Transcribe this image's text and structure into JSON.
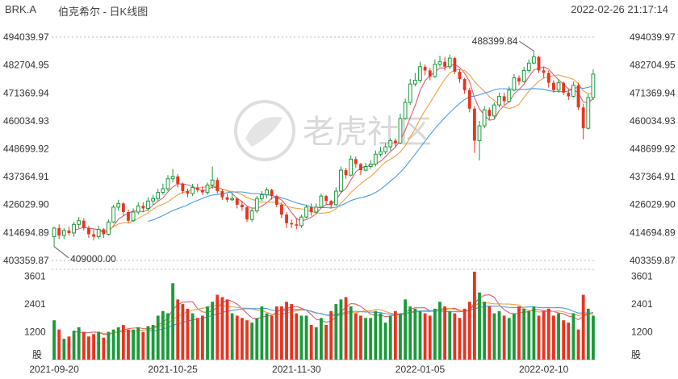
{
  "header": {
    "ticker": "BRK.A",
    "name": "伯克希尔 - 日K线图",
    "timestamp": "2022-02-26 21:17:14"
  },
  "watermark": "老虎社区",
  "colors": {
    "up": "#e8331f",
    "down": "#1a9a3a",
    "ma5": "#e05c6a",
    "ma10": "#f0a040",
    "ma20": "#4a9de0",
    "grid": "#bbbbbb"
  },
  "chart_data": {
    "type": "candlestick",
    "price_ticks": [
      "494039.97",
      "482704.95",
      "471369.94",
      "460034.93",
      "448699.92",
      "437364.91",
      "426029.90",
      "414694.89",
      "403359.87"
    ],
    "price_range": [
      403359.87,
      494039.97
    ],
    "volume_ticks": [
      "3601",
      "2401",
      "1200"
    ],
    "volume_unit": "股",
    "volume_range": [
      0,
      3901
    ],
    "x_labels": [
      {
        "text": "2021-09-20",
        "index": 0
      },
      {
        "text": "2021-10-25",
        "index": 24
      },
      {
        "text": "2021-11-30",
        "index": 49
      },
      {
        "text": "2022-01-05",
        "index": 74
      },
      {
        "text": "2022-02-10",
        "index": 99
      }
    ],
    "annotations": {
      "low_label": "409000.00",
      "low_value": 409000.0,
      "high_label": "488399.84",
      "high_value": 488399.84
    },
    "candles": [
      [
        413000,
        416500,
        417000,
        409000,
        1700
      ],
      [
        416500,
        413500,
        418000,
        412000,
        1300
      ],
      [
        413500,
        415500,
        416500,
        412000,
        900
      ],
      [
        415500,
        414500,
        417000,
        413500,
        1000
      ],
      [
        414500,
        418000,
        419000,
        413000,
        1250
      ],
      [
        418000,
        419500,
        421000,
        416500,
        1400
      ],
      [
        419500,
        416500,
        420500,
        415500,
        1200
      ],
      [
        416500,
        414000,
        417500,
        412500,
        1000
      ],
      [
        414000,
        413000,
        416000,
        411500,
        1100
      ],
      [
        413000,
        416000,
        417500,
        412000,
        1200
      ],
      [
        416000,
        414000,
        416500,
        412500,
        950
      ],
      [
        414000,
        419000,
        420000,
        413500,
        1200
      ],
      [
        419000,
        425000,
        426000,
        418500,
        1300
      ],
      [
        425000,
        426500,
        428000,
        423500,
        1400
      ],
      [
        426500,
        423000,
        427000,
        421500,
        1500
      ],
      [
        423000,
        419500,
        424000,
        418500,
        1300
      ],
      [
        419500,
        423000,
        424500,
        419000,
        1300
      ],
      [
        423000,
        425500,
        427000,
        422000,
        1400
      ],
      [
        425500,
        424500,
        427000,
        423000,
        1200
      ],
      [
        424500,
        427500,
        429000,
        423500,
        1450
      ],
      [
        427500,
        428500,
        430000,
        426000,
        1500
      ],
      [
        428500,
        431000,
        432500,
        427500,
        1900
      ],
      [
        431000,
        432500,
        434500,
        430000,
        2100
      ],
      [
        432500,
        436500,
        438000,
        431500,
        2000
      ],
      [
        436500,
        437500,
        440500,
        435000,
        3300
      ],
      [
        437500,
        434500,
        438500,
        433000,
        2600
      ],
      [
        434500,
        431500,
        435000,
        430500,
        2400
      ],
      [
        431500,
        430500,
        432500,
        429000,
        2200
      ],
      [
        430500,
        433000,
        434500,
        429500,
        2000
      ],
      [
        433000,
        432000,
        434500,
        431000,
        1800
      ],
      [
        432000,
        431000,
        433500,
        430000,
        1900
      ],
      [
        431000,
        434000,
        435000,
        430000,
        2300
      ],
      [
        434000,
        436000,
        441500,
        432500,
        2500
      ],
      [
        436000,
        431500,
        437000,
        430500,
        2800
      ],
      [
        431500,
        429000,
        432500,
        428000,
        2700
      ],
      [
        429000,
        428000,
        430500,
        427000,
        2600
      ],
      [
        428000,
        428500,
        430500,
        427500,
        2000
      ],
      [
        428500,
        426000,
        429000,
        424500,
        1900
      ],
      [
        426000,
        425000,
        427500,
        423500,
        1800
      ],
      [
        425000,
        420000,
        425500,
        419000,
        1700
      ],
      [
        420000,
        423500,
        424500,
        419000,
        1600
      ],
      [
        423500,
        428500,
        429500,
        422500,
        1800
      ],
      [
        428500,
        430000,
        431500,
        427500,
        2300
      ],
      [
        430000,
        432000,
        433000,
        428500,
        2000
      ],
      [
        432000,
        429500,
        432500,
        428000,
        1900
      ],
      [
        429500,
        426000,
        430000,
        425000,
        2300
      ],
      [
        426000,
        422000,
        427000,
        420500,
        2300
      ],
      [
        422000,
        418500,
        423000,
        416500,
        2500
      ],
      [
        418500,
        418000,
        420000,
        416500,
        2400
      ],
      [
        418000,
        417500,
        420500,
        416000,
        2000
      ],
      [
        417500,
        421000,
        422000,
        416500,
        1900
      ],
      [
        421000,
        425000,
        426000,
        420500,
        1900
      ],
      [
        425000,
        423000,
        426500,
        421500,
        1500
      ],
      [
        423000,
        425000,
        426500,
        422500,
        1400
      ],
      [
        425000,
        429500,
        430500,
        424500,
        1800
      ],
      [
        429500,
        427500,
        430000,
        426000,
        1500
      ],
      [
        427500,
        426000,
        428000,
        424500,
        2100
      ],
      [
        426000,
        431500,
        433000,
        425500,
        2400
      ],
      [
        431500,
        440000,
        441500,
        431000,
        2600
      ],
      [
        440000,
        438000,
        441000,
        436500,
        2700
      ],
      [
        438000,
        444500,
        446000,
        437500,
        2300
      ],
      [
        444500,
        442500,
        445500,
        441000,
        2000
      ],
      [
        442500,
        440000,
        443000,
        438000,
        1900
      ],
      [
        440000,
        441500,
        443000,
        439500,
        1800
      ],
      [
        441500,
        442500,
        444000,
        440500,
        1800
      ],
      [
        442500,
        446500,
        448000,
        441500,
        2100
      ],
      [
        446500,
        447500,
        449500,
        445500,
        2000
      ],
      [
        447500,
        449500,
        451000,
        446500,
        1600
      ],
      [
        449500,
        452000,
        453000,
        448000,
        1900
      ],
      [
        452000,
        451000,
        453000,
        449500,
        2100
      ],
      [
        451000,
        461000,
        463000,
        450500,
        2000
      ],
      [
        461000,
        467500,
        469000,
        460500,
        2600
      ],
      [
        467500,
        475000,
        477000,
        466500,
        2300
      ],
      [
        475000,
        476500,
        479500,
        474000,
        2200
      ],
      [
        476500,
        482000,
        484000,
        475500,
        2100
      ],
      [
        482000,
        480500,
        483000,
        478500,
        2000
      ],
      [
        480500,
        478000,
        481500,
        476500,
        1900
      ],
      [
        478000,
        483000,
        485000,
        477500,
        2200
      ],
      [
        483000,
        484000,
        486500,
        482000,
        2500
      ],
      [
        484000,
        482000,
        486000,
        480500,
        2300
      ],
      [
        482000,
        485500,
        487000,
        481000,
        2100
      ],
      [
        485500,
        480000,
        486000,
        479000,
        2000
      ],
      [
        480000,
        477000,
        481000,
        475500,
        1800
      ],
      [
        477000,
        472500,
        477500,
        471000,
        2200
      ],
      [
        472500,
        465000,
        473500,
        463500,
        2500
      ],
      [
        465000,
        452000,
        466000,
        447000,
        3800
      ],
      [
        452000,
        458000,
        460000,
        444000,
        2900
      ],
      [
        458000,
        464500,
        466000,
        457000,
        2500
      ],
      [
        464500,
        462000,
        465500,
        460500,
        2300
      ],
      [
        462000,
        466500,
        467500,
        461000,
        2000
      ],
      [
        466500,
        470000,
        471500,
        465500,
        2100
      ],
      [
        470000,
        468000,
        471500,
        466500,
        1900
      ],
      [
        468000,
        472500,
        474000,
        467500,
        1800
      ],
      [
        472500,
        477500,
        479000,
        472000,
        2000
      ],
      [
        477500,
        476000,
        478500,
        474500,
        2300
      ],
      [
        476000,
        480500,
        482000,
        475500,
        2200
      ],
      [
        480500,
        483500,
        485000,
        479500,
        2100
      ],
      [
        483500,
        486000,
        488399.84,
        483000,
        2300
      ],
      [
        486000,
        480500,
        486500,
        479500,
        1900
      ],
      [
        480500,
        479500,
        482000,
        477500,
        2100
      ],
      [
        479500,
        475500,
        480500,
        473500,
        2200
      ],
      [
        475500,
        472500,
        476500,
        471500,
        1900
      ],
      [
        472500,
        475500,
        477000,
        471500,
        2000
      ],
      [
        475500,
        471500,
        476000,
        470500,
        1700
      ],
      [
        471500,
        470000,
        473000,
        468500,
        1600
      ],
      [
        470000,
        474500,
        476000,
        469500,
        2000
      ],
      [
        474500,
        465500,
        475500,
        464500,
        1300
      ],
      [
        465500,
        457000,
        467000,
        452500,
        2800
      ],
      [
        457000,
        469500,
        471000,
        456500,
        2200
      ],
      [
        469500,
        479000,
        481000,
        468500,
        1900
      ]
    ]
  }
}
